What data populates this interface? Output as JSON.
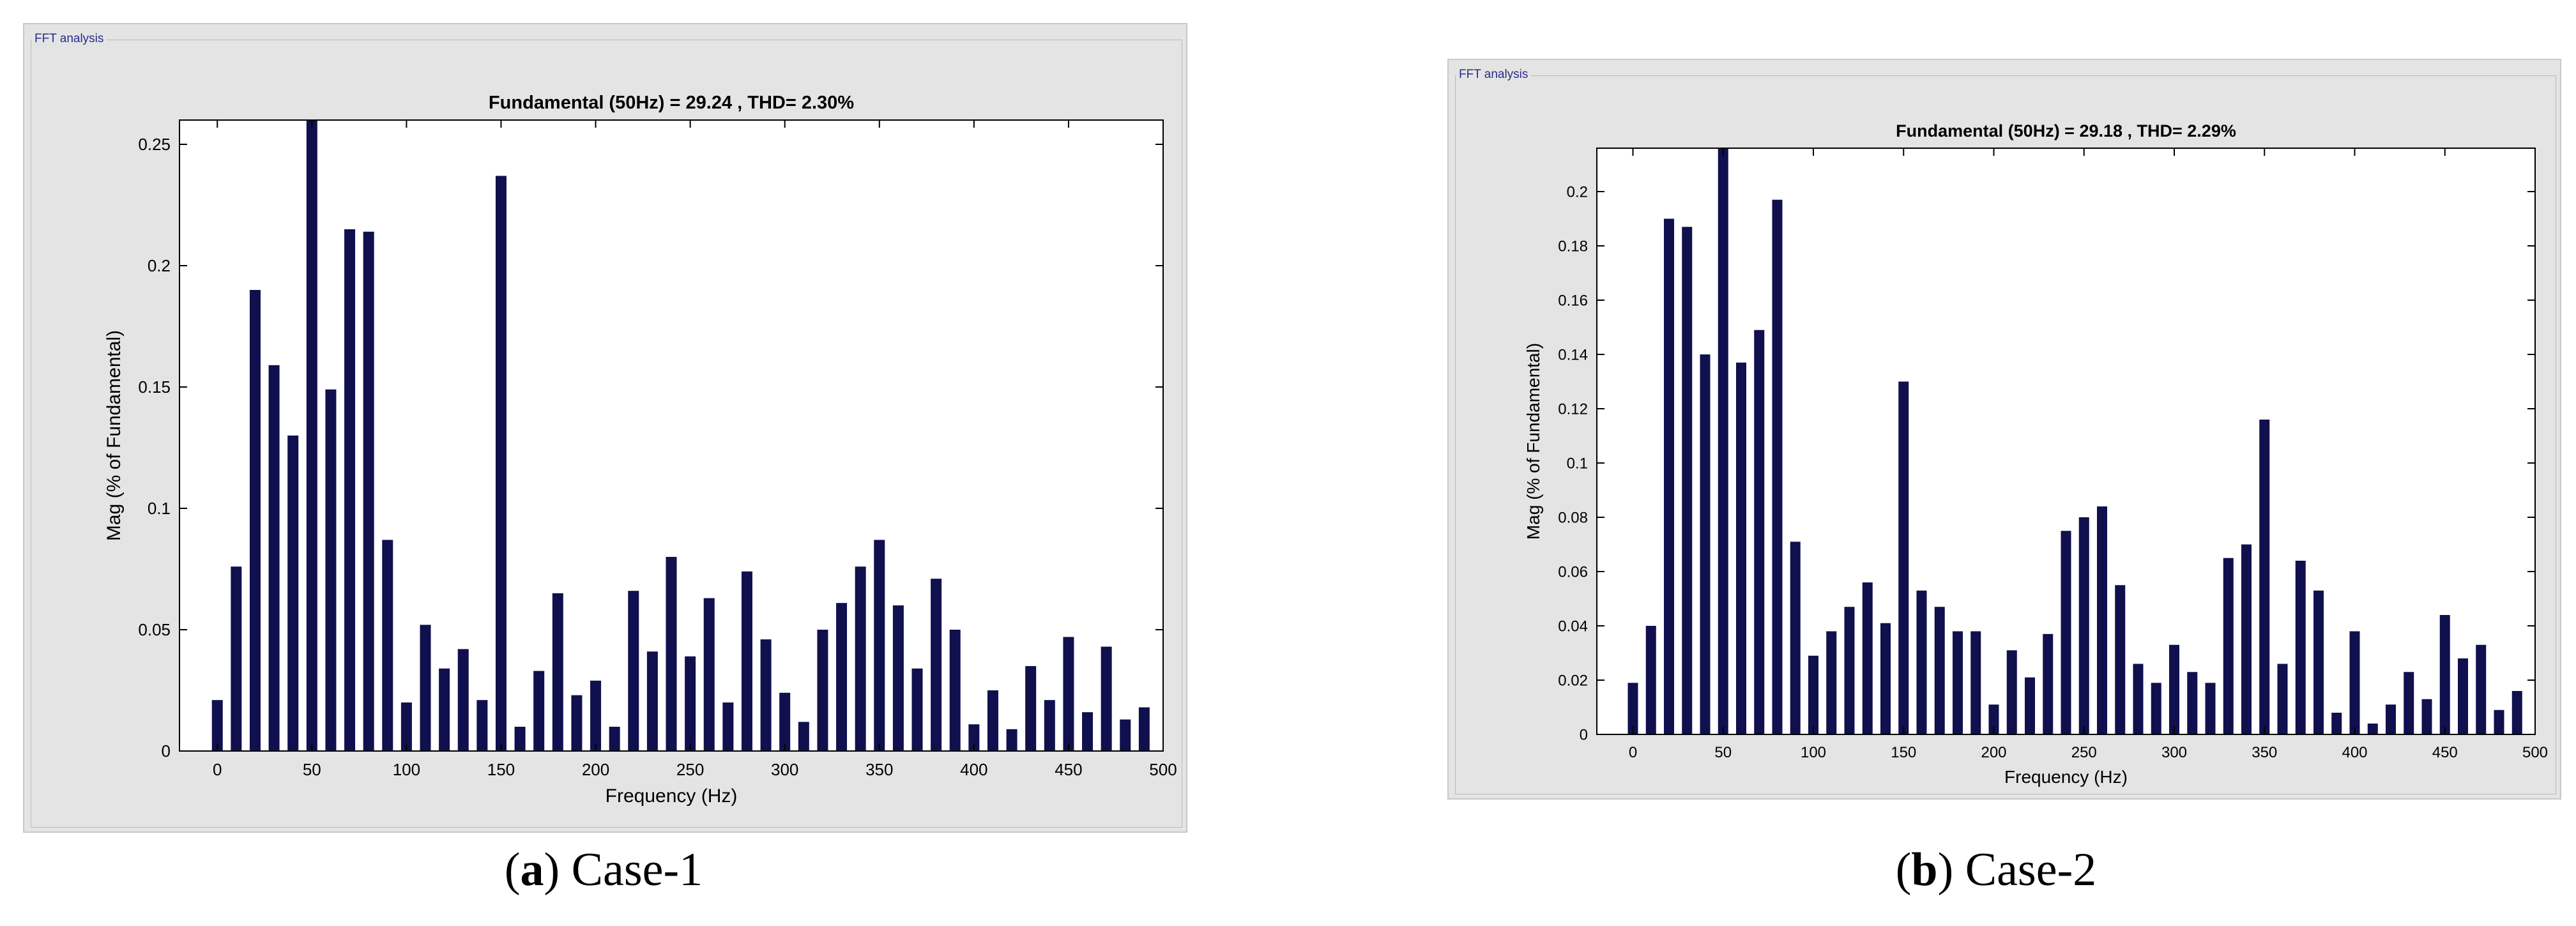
{
  "chart_data": [
    {
      "type": "bar",
      "panel_label": "FFT analysis",
      "title": "Fundamental (50Hz) = 29.24 , THD= 2.30%",
      "xlabel": "Frequency (Hz)",
      "ylabel": "Mag (% of Fundamental)",
      "xlim": [
        -20,
        500
      ],
      "ylim": [
        0,
        0.26
      ],
      "xticks": [
        0,
        50,
        100,
        150,
        200,
        250,
        300,
        350,
        400,
        450,
        500
      ],
      "yticks": [
        0,
        0.05,
        0.1,
        0.15,
        0.2,
        0.25
      ],
      "ytick_labels": [
        "0",
        "0.05",
        "0.1",
        "0.15",
        "0.2",
        "0.25"
      ],
      "bar_color": "#10104e",
      "x": [
        0,
        10,
        20,
        30,
        40,
        50,
        60,
        70,
        80,
        90,
        100,
        110,
        120,
        130,
        140,
        150,
        160,
        170,
        180,
        190,
        200,
        210,
        220,
        230,
        240,
        250,
        260,
        270,
        280,
        290,
        300,
        310,
        320,
        330,
        340,
        350,
        360,
        370,
        380,
        390,
        400,
        410,
        420,
        430,
        440,
        450,
        460,
        470,
        480,
        490
      ],
      "values": [
        0.021,
        0.076,
        0.19,
        0.159,
        0.13,
        0.26,
        0.149,
        0.215,
        0.214,
        0.087,
        0.02,
        0.052,
        0.034,
        0.042,
        0.021,
        0.237,
        0.01,
        0.033,
        0.065,
        0.023,
        0.029,
        0.01,
        0.066,
        0.041,
        0.08,
        0.039,
        0.063,
        0.02,
        0.074,
        0.046,
        0.024,
        0.012,
        0.05,
        0.061,
        0.076,
        0.087,
        0.06,
        0.034,
        0.071,
        0.05,
        0.011,
        0.025,
        0.009,
        0.035,
        0.021,
        0.047,
        0.016,
        0.043,
        0.013,
        0.018
      ]
    },
    {
      "type": "bar",
      "panel_label": "FFT analysis",
      "title": "Fundamental (50Hz) = 29.18 , THD= 2.29%",
      "xlabel": "Frequency (Hz)",
      "ylabel": "Mag (% of Fundamental)",
      "xlim": [
        -20,
        500
      ],
      "ylim": [
        0,
        0.216
      ],
      "xticks": [
        0,
        50,
        100,
        150,
        200,
        250,
        300,
        350,
        400,
        450,
        500
      ],
      "yticks": [
        0,
        0.02,
        0.04,
        0.06,
        0.08,
        0.1,
        0.12,
        0.14,
        0.16,
        0.18,
        0.2
      ],
      "ytick_labels": [
        "0",
        "0.02",
        "0.04",
        "0.06",
        "0.08",
        "0.1",
        "0.12",
        "0.14",
        "0.16",
        "0.18",
        "0.2"
      ],
      "bar_color": "#10104e",
      "x": [
        0,
        10,
        20,
        30,
        40,
        50,
        60,
        70,
        80,
        90,
        100,
        110,
        120,
        130,
        140,
        150,
        160,
        170,
        180,
        190,
        200,
        210,
        220,
        230,
        240,
        250,
        260,
        270,
        280,
        290,
        300,
        310,
        320,
        330,
        340,
        350,
        360,
        370,
        380,
        390,
        400,
        410,
        420,
        430,
        440,
        450,
        460,
        470,
        480,
        490
      ],
      "values": [
        0.019,
        0.04,
        0.19,
        0.187,
        0.14,
        0.216,
        0.137,
        0.149,
        0.197,
        0.071,
        0.029,
        0.038,
        0.047,
        0.056,
        0.041,
        0.13,
        0.053,
        0.047,
        0.038,
        0.038,
        0.011,
        0.031,
        0.021,
        0.037,
        0.075,
        0.08,
        0.084,
        0.055,
        0.026,
        0.019,
        0.033,
        0.023,
        0.019,
        0.065,
        0.07,
        0.116,
        0.026,
        0.064,
        0.053,
        0.008,
        0.038,
        0.004,
        0.011,
        0.023,
        0.013,
        0.044,
        0.028,
        0.033,
        0.009,
        0.016
      ]
    }
  ],
  "captions": [
    {
      "letter": "a",
      "text": " Case-1"
    },
    {
      "letter": "b",
      "text": " Case-2"
    }
  ]
}
